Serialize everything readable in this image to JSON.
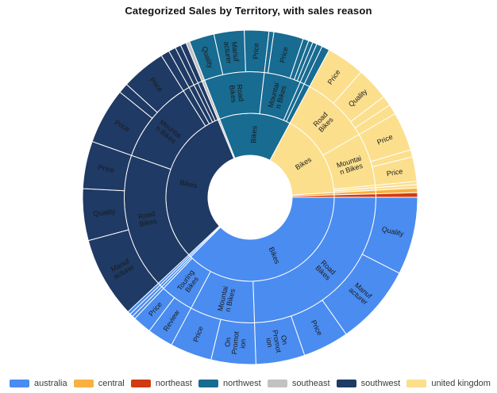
{
  "title": "Categorized Sales by Territory, with sales reason",
  "legend": {
    "items": [
      {
        "label": "australia",
        "color": "#4a8cf0"
      },
      {
        "label": "central",
        "color": "#f9b13f"
      },
      {
        "label": "northeast",
        "color": "#d13b13"
      },
      {
        "label": "northwest",
        "color": "#186b91"
      },
      {
        "label": "southeast",
        "color": "#c2c2c2"
      },
      {
        "label": "southwest",
        "color": "#1f3a64"
      },
      {
        "label": "united kingdom",
        "color": "#fcdf8d"
      }
    ]
  },
  "chart_data": {
    "type": "sunburst",
    "title": "Categorized Sales by Territory, with sales reason",
    "hierarchy": [
      "category",
      "subcategory",
      "sales reason"
    ],
    "color_by": "territory",
    "legend_position": "bottom",
    "territory_colors": {
      "australia": "#4a8cf0",
      "central": "#f9b13f",
      "northeast": "#d13b13",
      "northwest": "#186b91",
      "southeast": "#c2c2c2",
      "southwest": "#1f3a64",
      "united kingdom": "#fcdf8d"
    },
    "angle_unit": "degrees clockwise from 3 o'clock",
    "segments": [
      {
        "territory": "australia",
        "level": 0,
        "label": "Bikes",
        "a0": 0,
        "a1": 134.8
      },
      {
        "territory": "australia",
        "level": 0,
        "label": null,
        "a0": 134.8,
        "a1": 135.8
      },
      {
        "territory": "australia",
        "level": 0,
        "label": null,
        "a0": 135.8,
        "a1": 136.8
      },
      {
        "territory": "australia",
        "level": 1,
        "label": "Road Bikes",
        "lines": [
          "Road",
          "Bikes"
        ],
        "a0": 0,
        "a1": 88
      },
      {
        "territory": "australia",
        "level": 1,
        "label": "Mountain Bikes",
        "lines": [
          "Mountai",
          "n Bikes"
        ],
        "a0": 88,
        "a1": 118
      },
      {
        "territory": "australia",
        "level": 1,
        "label": "Touring Bikes",
        "lines": [
          "Touring",
          "Bikes"
        ],
        "a0": 118,
        "a1": 133.5
      },
      {
        "territory": "australia",
        "level": 1,
        "label": null,
        "a0": 133.5,
        "a1": 134.6
      },
      {
        "territory": "australia",
        "level": 1,
        "label": null,
        "a0": 134.6,
        "a1": 135.7
      },
      {
        "territory": "australia",
        "level": 1,
        "label": null,
        "a0": 135.7,
        "a1": 136.8
      },
      {
        "territory": "australia",
        "level": 2,
        "label": "Quality",
        "a0": 0,
        "a1": 27
      },
      {
        "territory": "australia",
        "level": 2,
        "label": "Manufacturer",
        "lines": [
          "Manuf",
          "acturer"
        ],
        "a0": 27,
        "a1": 55
      },
      {
        "territory": "australia",
        "level": 2,
        "label": "Price",
        "a0": 55,
        "a1": 71
      },
      {
        "territory": "australia",
        "level": 2,
        "label": "On Promotion",
        "lines": [
          "On",
          "Promot",
          "ion"
        ],
        "a0": 71,
        "a1": 88
      },
      {
        "territory": "australia",
        "level": 2,
        "label": "On Promotion",
        "lines": [
          "On",
          "Promot",
          "ion"
        ],
        "a0": 88,
        "a1": 103.5
      },
      {
        "territory": "australia",
        "level": 2,
        "label": "Price",
        "a0": 103.5,
        "a1": 118
      },
      {
        "territory": "australia",
        "level": 2,
        "label": "Review",
        "a0": 118,
        "a1": 127
      },
      {
        "territory": "australia",
        "level": 2,
        "label": "Price",
        "a0": 127,
        "a1": 133.5
      },
      {
        "territory": "australia",
        "level": 2,
        "label": null,
        "a0": 133.5,
        "a1": 134.6
      },
      {
        "territory": "australia",
        "level": 2,
        "label": null,
        "a0": 134.6,
        "a1": 135.7
      },
      {
        "territory": "australia",
        "level": 2,
        "label": null,
        "a0": 135.7,
        "a1": 136.8
      },
      {
        "territory": "southwest",
        "level": 0,
        "label": "Bikes",
        "a0": 136.8,
        "a1": 247.5
      },
      {
        "territory": "southwest",
        "level": 1,
        "label": "Road Bikes",
        "lines": [
          "Road",
          "Bikes"
        ],
        "a0": 136.8,
        "a1": 199.5
      },
      {
        "territory": "southwest",
        "level": 1,
        "label": "Mountain Bikes",
        "lines": [
          "Mountai",
          "n Bikes"
        ],
        "a0": 199.5,
        "a1": 238
      },
      {
        "territory": "southwest",
        "level": 1,
        "label": null,
        "a0": 238,
        "a1": 241
      },
      {
        "territory": "southwest",
        "level": 1,
        "label": null,
        "a0": 241,
        "a1": 243.5
      },
      {
        "territory": "southwest",
        "level": 1,
        "label": null,
        "a0": 243.5,
        "a1": 245.5
      },
      {
        "territory": "southwest",
        "level": 1,
        "label": null,
        "a0": 245.5,
        "a1": 247.5
      },
      {
        "territory": "southwest",
        "level": 2,
        "label": "Manufacturer",
        "lines": [
          "Manuf",
          "acturer"
        ],
        "a0": 136.8,
        "a1": 165
      },
      {
        "territory": "southwest",
        "level": 2,
        "label": "Quality",
        "a0": 165,
        "a1": 183
      },
      {
        "territory": "southwest",
        "level": 2,
        "label": "Price",
        "a0": 183,
        "a1": 199.5
      },
      {
        "territory": "southwest",
        "level": 2,
        "label": "Price",
        "a0": 199.5,
        "a1": 219
      },
      {
        "territory": "southwest",
        "level": 2,
        "label": null,
        "a0": 219,
        "a1": 222.5
      },
      {
        "territory": "southwest",
        "level": 2,
        "label": "Price",
        "a0": 222.5,
        "a1": 238
      },
      {
        "territory": "southwest",
        "level": 2,
        "label": null,
        "a0": 238,
        "a1": 241
      },
      {
        "territory": "southwest",
        "level": 2,
        "label": null,
        "a0": 241,
        "a1": 243.5
      },
      {
        "territory": "southwest",
        "level": 2,
        "label": null,
        "a0": 243.5,
        "a1": 245.5
      },
      {
        "territory": "southwest",
        "level": 2,
        "label": null,
        "a0": 245.5,
        "a1": 247.5
      },
      {
        "territory": "southeast",
        "level": 0,
        "label": null,
        "a0": 247.5,
        "a1": 248.8
      },
      {
        "territory": "southeast",
        "level": 1,
        "label": null,
        "a0": 247.5,
        "a1": 248.8
      },
      {
        "territory": "southeast",
        "level": 2,
        "label": null,
        "a0": 247.5,
        "a1": 248.8
      },
      {
        "territory": "northwest",
        "level": 0,
        "label": "Bikes",
        "a0": 248.8,
        "a1": 298.2
      },
      {
        "territory": "northwest",
        "level": 1,
        "label": "Road Bikes",
        "lines": [
          "Road",
          "Bikes"
        ],
        "a0": 248.8,
        "a1": 276.5
      },
      {
        "territory": "northwest",
        "level": 1,
        "label": "Mountain Bikes",
        "lines": [
          "Mountai",
          "n Bikes"
        ],
        "a0": 276.5,
        "a1": 293.5
      },
      {
        "territory": "northwest",
        "level": 1,
        "label": null,
        "a0": 293.5,
        "a1": 295.5
      },
      {
        "territory": "northwest",
        "level": 1,
        "label": null,
        "a0": 295.5,
        "a1": 298.2
      },
      {
        "territory": "northwest",
        "level": 2,
        "label": "Quality",
        "a0": 248.8,
        "a1": 257.5
      },
      {
        "territory": "northwest",
        "level": 2,
        "label": "Manufacturer",
        "lines": [
          "Manuf",
          "acturer"
        ],
        "a0": 257.5,
        "a1": 268
      },
      {
        "territory": "northwest",
        "level": 2,
        "label": "Price",
        "a0": 268,
        "a1": 276.5
      },
      {
        "territory": "northwest",
        "level": 2,
        "label": null,
        "a0": 276.5,
        "a1": 278.2
      },
      {
        "territory": "northwest",
        "level": 2,
        "label": "Price",
        "a0": 278.2,
        "a1": 288.5
      },
      {
        "territory": "northwest",
        "level": 2,
        "label": null,
        "a0": 288.5,
        "a1": 290.5
      },
      {
        "territory": "northwest",
        "level": 2,
        "label": null,
        "a0": 290.5,
        "a1": 292
      },
      {
        "territory": "northwest",
        "level": 2,
        "label": null,
        "a0": 292,
        "a1": 293.5
      },
      {
        "territory": "northwest",
        "level": 2,
        "label": null,
        "a0": 293.5,
        "a1": 295.5
      },
      {
        "territory": "northwest",
        "level": 2,
        "label": null,
        "a0": 295.5,
        "a1": 298.2
      },
      {
        "territory": "united kingdom",
        "level": 0,
        "label": "Bikes",
        "a0": 298.2,
        "a1": 356.8
      },
      {
        "territory": "united kingdom",
        "level": 1,
        "label": "Road Bikes",
        "lines": [
          "Road",
          "Bikes"
        ],
        "a0": 298.2,
        "a1": 330
      },
      {
        "territory": "united kingdom",
        "level": 1,
        "label": "Mountain Bikes",
        "lines": [
          "Mountai",
          "n Bikes"
        ],
        "a0": 330,
        "a1": 354.5
      },
      {
        "territory": "united kingdom",
        "level": 1,
        "label": null,
        "a0": 354.5,
        "a1": 355.6
      },
      {
        "territory": "united kingdom",
        "level": 1,
        "label": null,
        "a0": 355.6,
        "a1": 356.8
      },
      {
        "territory": "united kingdom",
        "level": 2,
        "label": "Price",
        "a0": 298.2,
        "a1": 311.5
      },
      {
        "territory": "united kingdom",
        "level": 2,
        "label": "Quality",
        "a0": 311.5,
        "a1": 323
      },
      {
        "territory": "united kingdom",
        "level": 2,
        "label": null,
        "a0": 323,
        "a1": 326.5
      },
      {
        "territory": "united kingdom",
        "level": 2,
        "label": null,
        "a0": 326.5,
        "a1": 330
      },
      {
        "territory": "united kingdom",
        "level": 2,
        "label": "Price",
        "a0": 330,
        "a1": 343.5
      },
      {
        "territory": "united kingdom",
        "level": 2,
        "label": null,
        "a0": 343.5,
        "a1": 346
      },
      {
        "territory": "united kingdom",
        "level": 2,
        "label": "Price",
        "a0": 346,
        "a1": 354.5
      },
      {
        "territory": "united kingdom",
        "level": 2,
        "label": null,
        "a0": 354.5,
        "a1": 355.6
      },
      {
        "territory": "united kingdom",
        "level": 2,
        "label": null,
        "a0": 355.6,
        "a1": 356.8
      },
      {
        "territory": "central",
        "level": 0,
        "label": null,
        "a0": 356.8,
        "a1": 358.4
      },
      {
        "territory": "central",
        "level": 1,
        "label": null,
        "a0": 356.8,
        "a1": 358.4
      },
      {
        "territory": "central",
        "level": 2,
        "label": null,
        "a0": 356.8,
        "a1": 358.4
      },
      {
        "territory": "northeast",
        "level": 0,
        "label": null,
        "a0": 358.4,
        "a1": 360
      },
      {
        "territory": "northeast",
        "level": 1,
        "label": null,
        "a0": 358.4,
        "a1": 360
      },
      {
        "territory": "northeast",
        "level": 2,
        "label": null,
        "a0": 358.4,
        "a1": 360
      }
    ]
  }
}
